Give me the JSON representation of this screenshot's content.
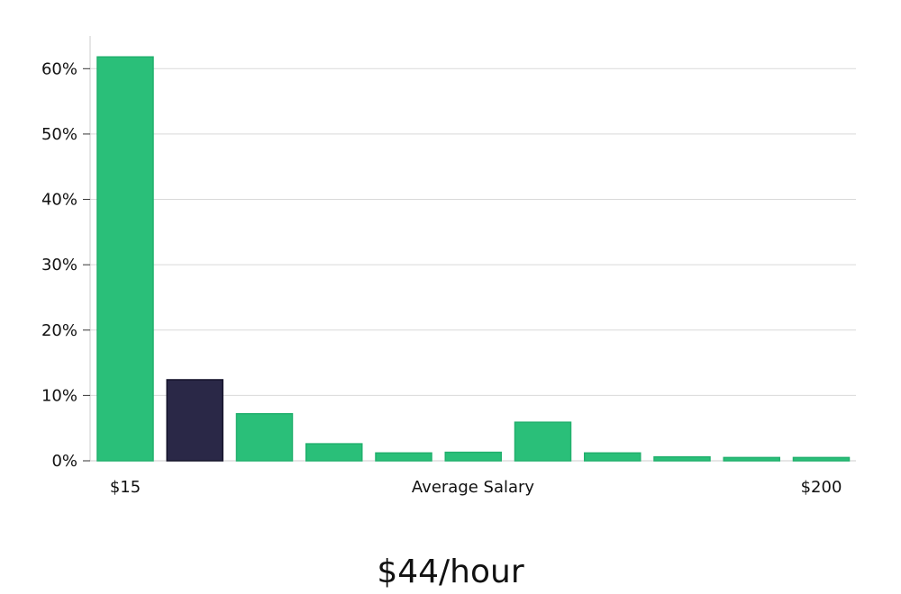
{
  "chart_data": {
    "type": "bar",
    "xlabel": "Average Salary",
    "x_start_label": "$15",
    "x_end_label": "$200",
    "ylim": [
      0,
      65
    ],
    "yticks": [
      0,
      10,
      20,
      30,
      40,
      50,
      60
    ],
    "ytick_labels": [
      "0%",
      "10%",
      "20%",
      "30%",
      "40%",
      "50%",
      "60%"
    ],
    "grid": true,
    "values": [
      61.8,
      12.4,
      7.2,
      2.6,
      1.2,
      1.3,
      5.9,
      1.2,
      0.6,
      0.5,
      0.5
    ],
    "highlight_index": 1,
    "colors": {
      "bar": "#2abf79",
      "bar_stroke": "#21b06d",
      "highlight": "#2a2847",
      "highlight_stroke": "#16152c",
      "grid": "#d9d9d9",
      "axis": "#cccccc"
    }
  },
  "summary": {
    "average_value": "$44/hour"
  }
}
